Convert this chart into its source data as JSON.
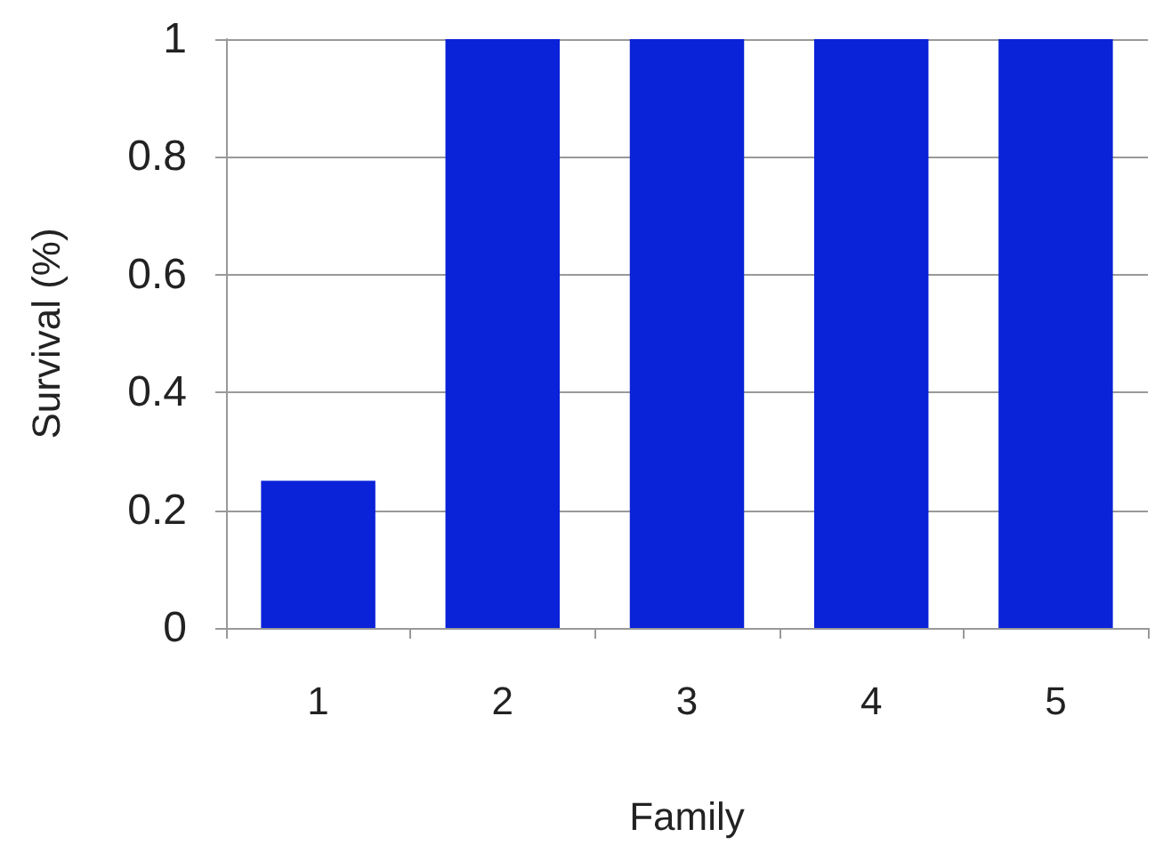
{
  "chart_data": {
    "type": "bar",
    "xlabel": "Family",
    "ylabel": "Survival (%)",
    "categories": [
      "1",
      "2",
      "3",
      "4",
      "5"
    ],
    "values": [
      0.25,
      1,
      1,
      1,
      1
    ],
    "color": "#0a22d8",
    "ylim": [
      0,
      1
    ],
    "yticks": [
      0,
      0.2,
      0.4,
      0.6,
      0.8,
      1
    ],
    "grid": "y"
  }
}
